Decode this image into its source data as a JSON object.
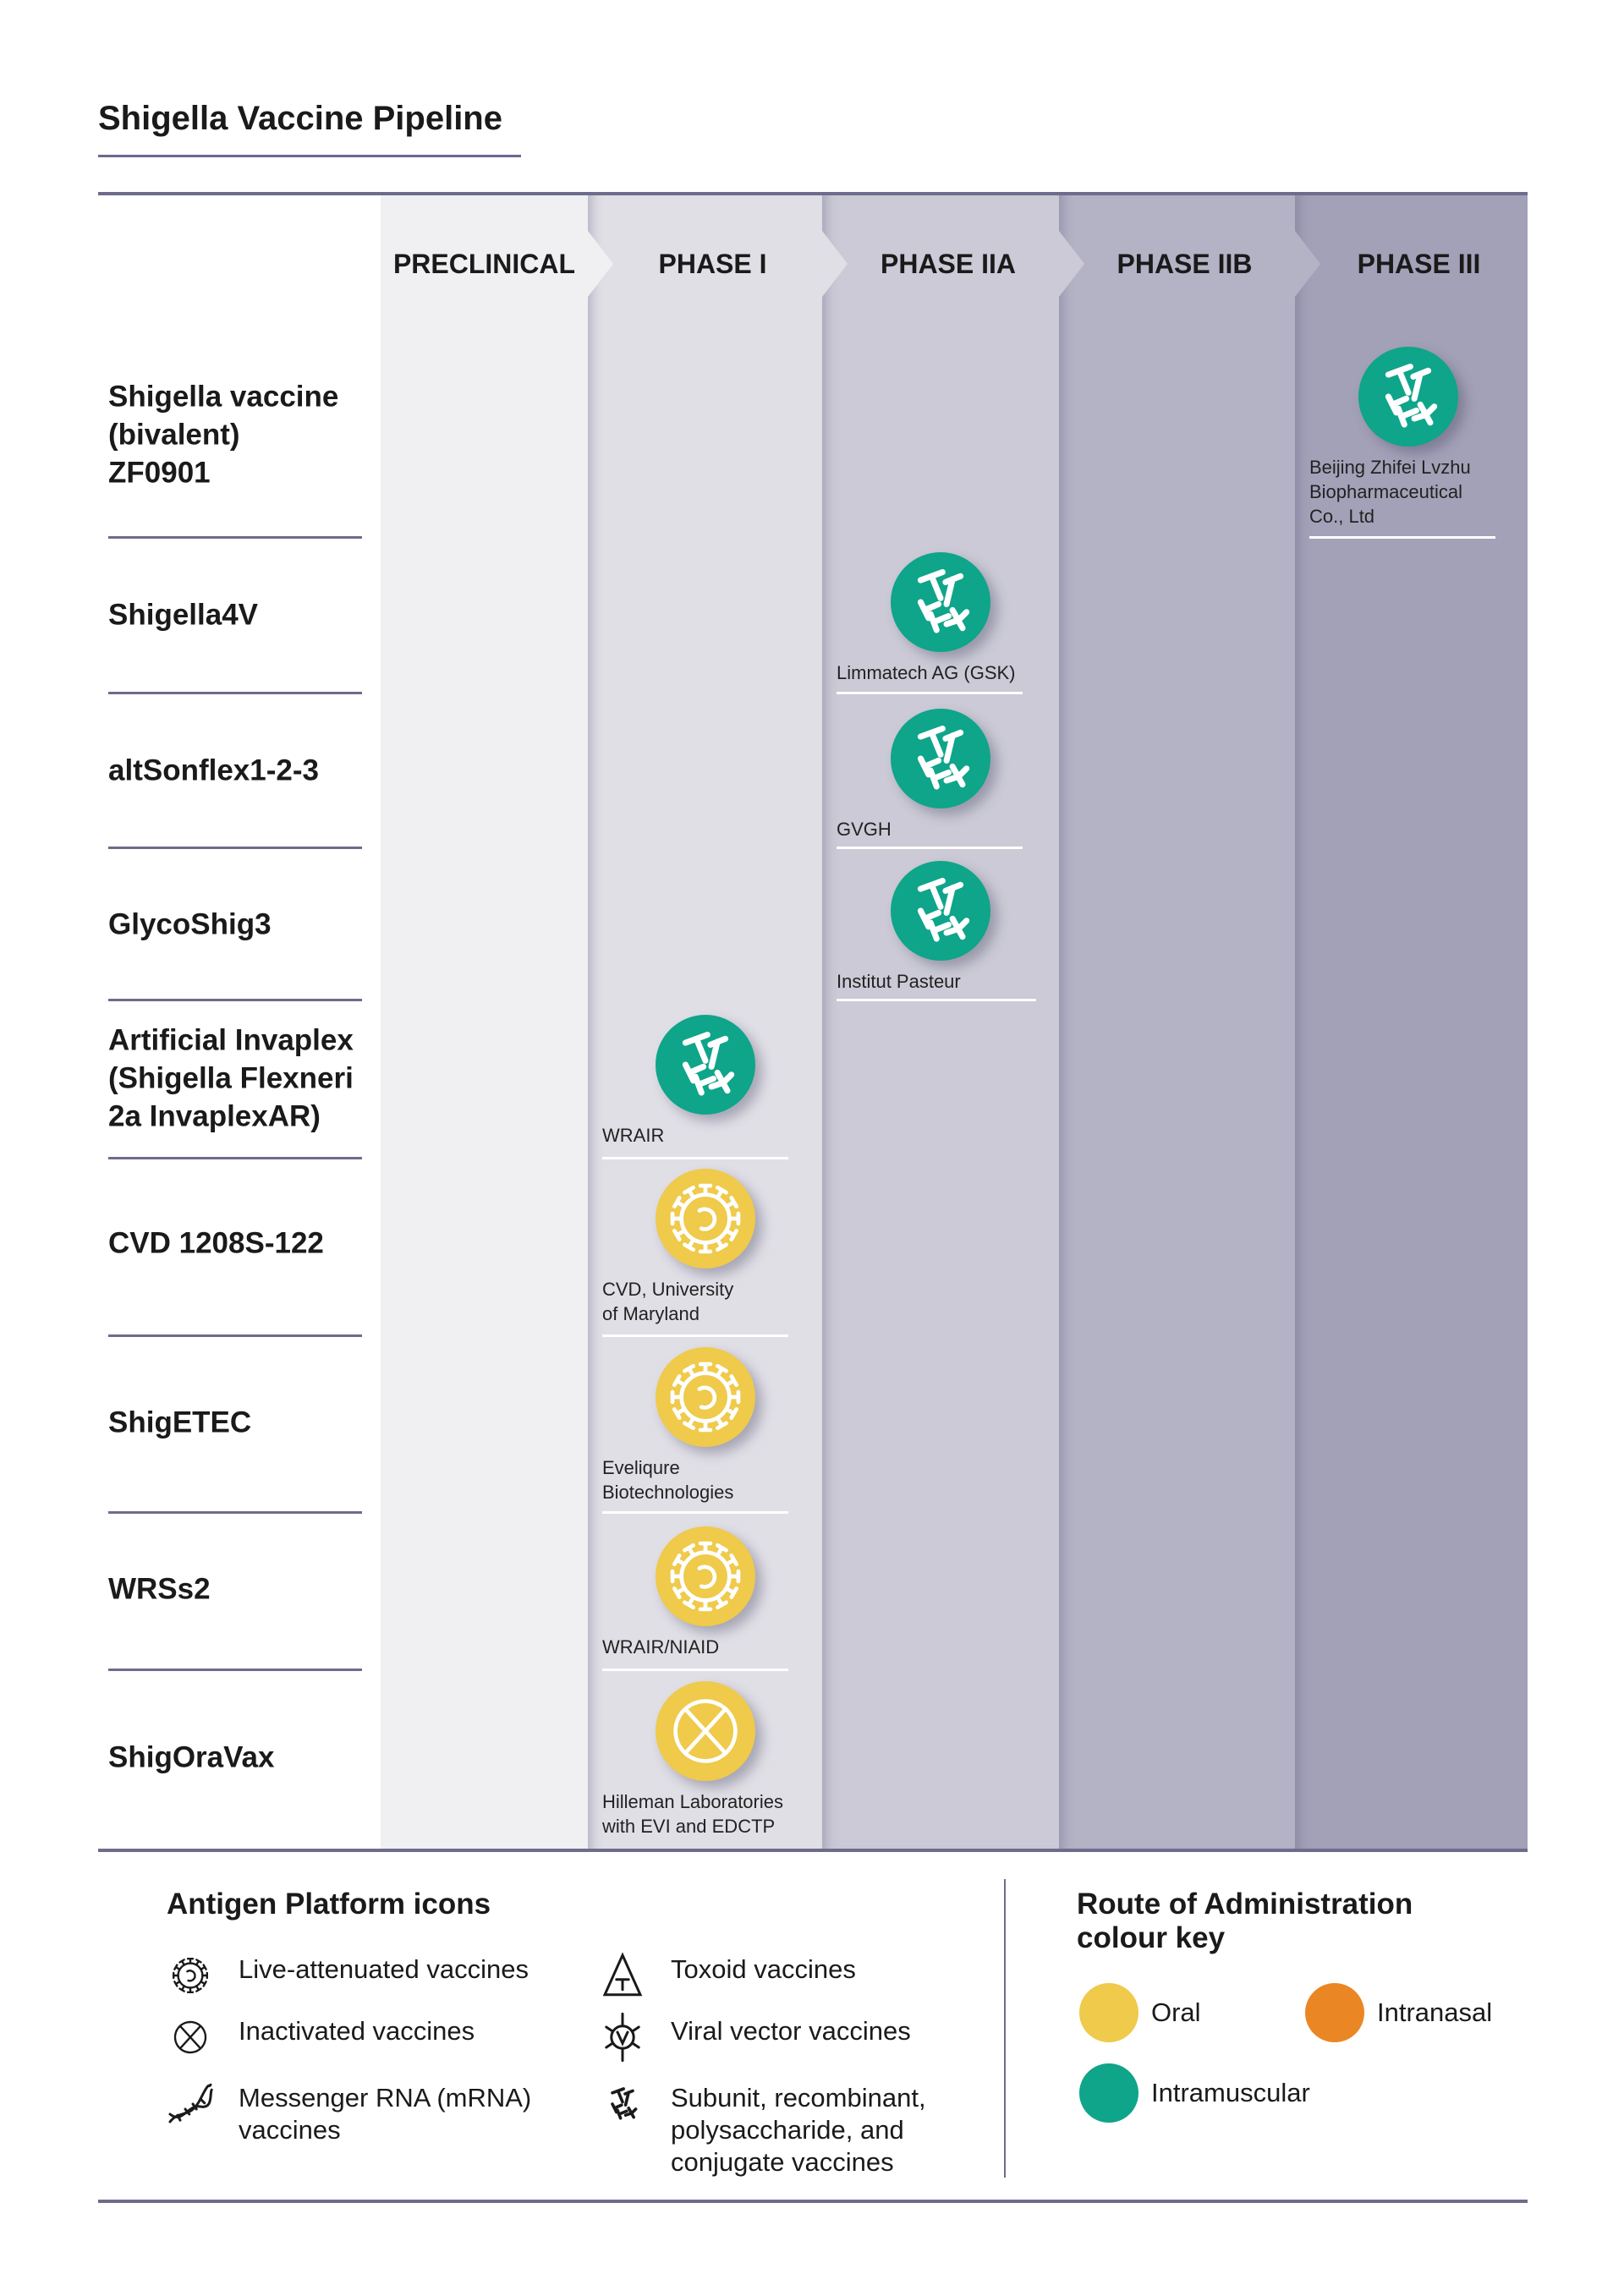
{
  "title": "Shigella Vaccine Pipeline",
  "phases": [
    {
      "label": "PRECLINICAL",
      "color": "#f0f0f3"
    },
    {
      "label": "PHASE I",
      "color": "#e0dfe6"
    },
    {
      "label": "PHASE IIA",
      "color": "#cbcad6"
    },
    {
      "label": "PHASE IIB",
      "color": "#b4b2c5"
    },
    {
      "label": "PHASE III",
      "color": "#a3a1b8"
    }
  ],
  "candidates": [
    {
      "name": "Shigella vaccine\n(bivalent)\nZF0901",
      "phase": "PHASE III",
      "developer": "Beijing Zhifei Lvzhu\nBiopharmaceutical\nCo., Ltd",
      "platform": "subunit-icon",
      "route": "Intramuscular"
    },
    {
      "name": "Shigella4V",
      "phase": "PHASE IIA",
      "developer": "Limmatech AG (GSK)",
      "platform": "subunit-icon",
      "route": "Intramuscular"
    },
    {
      "name": "altSonflex1-2-3",
      "phase": "PHASE IIA",
      "developer": "GVGH",
      "platform": "subunit-icon",
      "route": "Intramuscular"
    },
    {
      "name": "GlycoShig3",
      "phase": "PHASE IIA",
      "developer": "Institut Pasteur",
      "platform": "subunit-icon",
      "route": "Intramuscular"
    },
    {
      "name": "Artificial Invaplex\n(Shigella Flexneri\n2a InvaplexAR)",
      "phase": "PHASE I",
      "developer": "WRAIR",
      "platform": "subunit-icon",
      "route": "Intramuscular"
    },
    {
      "name": "CVD 1208S-122",
      "phase": "PHASE I",
      "developer": "CVD, University\nof Maryland",
      "platform": "live-attenuated-icon",
      "route": "Oral"
    },
    {
      "name": "ShigETEC",
      "phase": "PHASE I",
      "developer": "Eveliqure\nBiotechnologies",
      "platform": "live-attenuated-icon",
      "route": "Oral"
    },
    {
      "name": "WRSs2",
      "phase": "PHASE I",
      "developer": "WRAIR/NIAID",
      "platform": "live-attenuated-icon",
      "route": "Oral"
    },
    {
      "name": "ShigOraVax",
      "phase": "PHASE I",
      "developer": "Hilleman Laboratories\nwith EVI and EDCTP",
      "platform": "inactivated-icon",
      "route": "Oral"
    }
  ],
  "legend": {
    "platform_title": "Antigen Platform icons",
    "platform_items": [
      {
        "icon": "live-attenuated-icon",
        "label": "Live-attenuated vaccines"
      },
      {
        "icon": "toxoid-icon",
        "label": "Toxoid vaccines"
      },
      {
        "icon": "inactivated-icon",
        "label": "Inactivated vaccines"
      },
      {
        "icon": "viral-vector-icon",
        "label": "Viral vector vaccines"
      },
      {
        "icon": "mrna-icon",
        "label": "Messenger RNA (mRNA)\nvaccines"
      },
      {
        "icon": "subunit-icon",
        "label": "Subunit, recombinant,\npolysaccharide, and\nconjugate vaccines"
      }
    ],
    "route_title": "Route of Administration\ncolour key",
    "routes": [
      {
        "label": "Oral",
        "color": "#efca4b"
      },
      {
        "label": "Intranasal",
        "color": "#ea8724"
      },
      {
        "label": "Intramuscular",
        "color": "#0ea58a"
      }
    ]
  }
}
